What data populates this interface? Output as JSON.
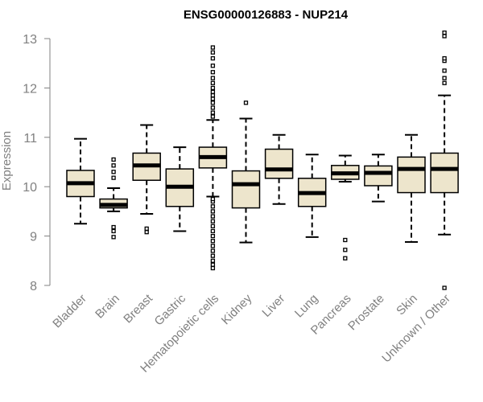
{
  "chart_data": {
    "type": "box",
    "title": "ENSG00000126883 - NUP214",
    "ylabel": "Expression",
    "xlabel": "",
    "ylim": [
      8,
      13
    ],
    "yticks": [
      8,
      9,
      10,
      11,
      12,
      13
    ],
    "ytick_labels": [
      "8",
      "9",
      "10",
      "11",
      "12",
      "13"
    ],
    "grid": false,
    "legend": "none",
    "colors": {
      "box_fill": "#ede5cc",
      "box_stroke": "#000000",
      "axis": "#808080",
      "label": "#808080"
    },
    "categories": [
      "Bladder",
      "Brain",
      "Breast",
      "Gastric",
      "Hematopoietic cells",
      "Kidney",
      "Liver",
      "Lung",
      "Pancreas",
      "Prostate",
      "Skin",
      "Unknown / Other"
    ],
    "boxes": [
      {
        "name": "Bladder",
        "whisker_low": 9.25,
        "q1": 9.8,
        "median": 10.07,
        "q3": 10.33,
        "whisker_high": 10.97,
        "outliers": []
      },
      {
        "name": "Brain",
        "whisker_low": 9.5,
        "q1": 9.57,
        "median": 9.63,
        "q3": 9.75,
        "whisker_high": 9.97,
        "outliers": [
          8.98,
          9.1,
          9.18,
          10.18,
          10.3,
          10.43,
          10.55
        ]
      },
      {
        "name": "Breast",
        "whisker_low": 9.45,
        "q1": 10.13,
        "median": 10.43,
        "q3": 10.68,
        "whisker_high": 11.25,
        "outliers": [
          9.08,
          9.15
        ]
      },
      {
        "name": "Gastric",
        "whisker_low": 9.1,
        "q1": 9.6,
        "median": 10.0,
        "q3": 10.36,
        "whisker_high": 10.8,
        "outliers": []
      },
      {
        "name": "Hematopoietic cells",
        "whisker_low": 9.8,
        "q1": 10.38,
        "median": 10.6,
        "q3": 10.8,
        "whisker_high": 11.35,
        "outliers": [
          8.35,
          8.42,
          8.5,
          8.6,
          8.7,
          8.8,
          8.9,
          9.0,
          9.1,
          9.2,
          9.3,
          9.4,
          9.5,
          9.6,
          9.7,
          9.75,
          11.42,
          11.5,
          11.6,
          11.7,
          11.78,
          11.85,
          11.92,
          12.0,
          12.1,
          12.2,
          12.32,
          12.45,
          12.6,
          12.72,
          12.82
        ]
      },
      {
        "name": "Kidney",
        "whisker_low": 8.87,
        "q1": 9.57,
        "median": 10.05,
        "q3": 10.32,
        "whisker_high": 11.38,
        "outliers": [
          11.7
        ]
      },
      {
        "name": "Liver",
        "whisker_low": 9.65,
        "q1": 10.17,
        "median": 10.35,
        "q3": 10.76,
        "whisker_high": 11.05,
        "outliers": []
      },
      {
        "name": "Lung",
        "whisker_low": 8.98,
        "q1": 9.6,
        "median": 9.87,
        "q3": 10.17,
        "whisker_high": 10.65,
        "outliers": []
      },
      {
        "name": "Pancreas",
        "whisker_low": 10.1,
        "q1": 10.15,
        "median": 10.27,
        "q3": 10.43,
        "whisker_high": 10.63,
        "outliers": [
          8.55,
          8.72,
          8.92
        ]
      },
      {
        "name": "Prostate",
        "whisker_low": 9.7,
        "q1": 10.02,
        "median": 10.28,
        "q3": 10.42,
        "whisker_high": 10.65,
        "outliers": []
      },
      {
        "name": "Skin",
        "whisker_low": 8.88,
        "q1": 9.88,
        "median": 10.36,
        "q3": 10.6,
        "whisker_high": 11.05,
        "outliers": []
      },
      {
        "name": "Unknown / Other",
        "whisker_low": 9.03,
        "q1": 9.88,
        "median": 10.36,
        "q3": 10.68,
        "whisker_high": 11.85,
        "outliers": [
          7.95,
          12.1,
          12.2,
          12.35,
          12.55,
          12.6,
          13.05,
          13.12
        ]
      }
    ]
  }
}
